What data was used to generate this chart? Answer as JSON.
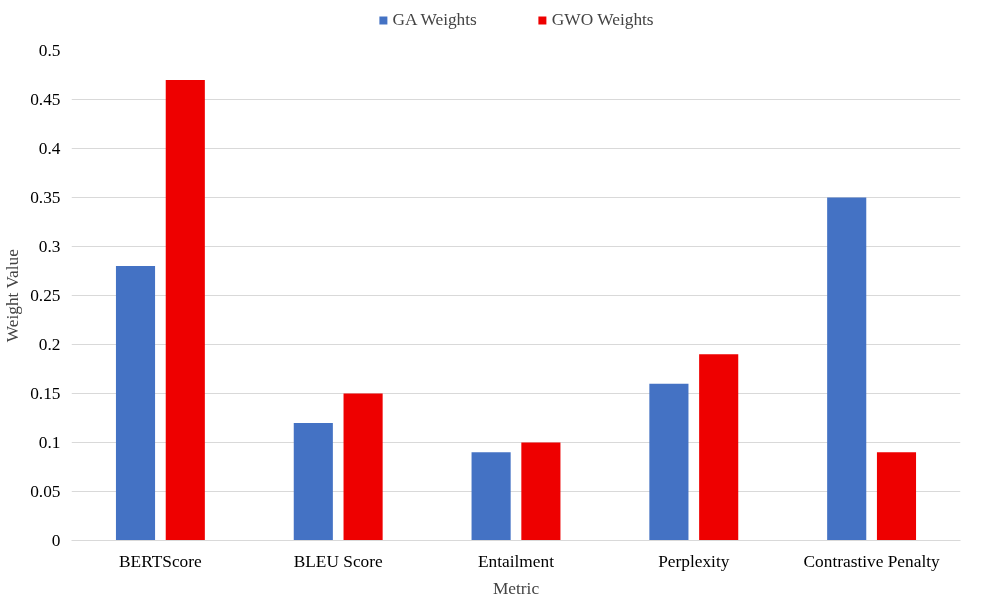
{
  "chart_data": {
    "type": "bar",
    "xlabel": "Metric",
    "ylabel": "Weight Value",
    "categories": [
      "BERTScore",
      "BLEU Score",
      "Entailment",
      "Perplexity",
      "Contrastive Penalty"
    ],
    "series": [
      {
        "name": "GA Weights",
        "color": "#4472c4",
        "values": [
          0.28,
          0.12,
          0.09,
          0.16,
          0.35
        ]
      },
      {
        "name": "GWO Weights",
        "color": "#ee0000",
        "values": [
          0.47,
          0.15,
          0.1,
          0.19,
          0.09
        ]
      }
    ],
    "ylim": [
      0,
      0.5
    ],
    "yticks": [
      0,
      0.05,
      0.1,
      0.15,
      0.2,
      0.25,
      0.3,
      0.35,
      0.4,
      0.45,
      0.5
    ],
    "grid": "y",
    "legend": "top"
  }
}
